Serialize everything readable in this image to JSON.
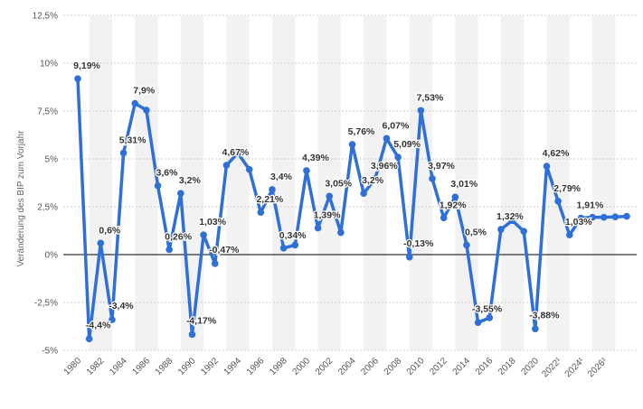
{
  "chart_data": {
    "type": "line",
    "title": "",
    "xlabel": "",
    "ylabel": "Veränderung des BIP zum Vorjahr",
    "ylim": [
      -5,
      12.5
    ],
    "yticks": [
      {
        "value": 12.5,
        "label": "12,5%"
      },
      {
        "value": 10,
        "label": "10%"
      },
      {
        "value": 7.5,
        "label": "7,5%"
      },
      {
        "value": 5,
        "label": "5%"
      },
      {
        "value": 2.5,
        "label": "2,5%"
      },
      {
        "value": 0,
        "label": "0%"
      },
      {
        "value": -2.5,
        "label": "-2,5%"
      },
      {
        "value": -5,
        "label": "-5%"
      }
    ],
    "xticks": [
      "1980",
      "1982",
      "1984",
      "1986",
      "1988",
      "1990",
      "1992",
      "1994",
      "1996",
      "1998",
      "2000",
      "2002",
      "2004",
      "2006",
      "2008",
      "2010",
      "2012",
      "2014",
      "2016",
      "2018",
      "2020",
      "2022¹",
      "2024¹",
      "2026¹"
    ],
    "grid": "horizontal dashed, alternating column bands",
    "line_color": "#2e6fd8",
    "series": [
      {
        "x": [
          1980,
          1981,
          1982,
          1983,
          1984,
          1985,
          1986,
          1987,
          1988,
          1989,
          1990,
          1991,
          1992,
          1993,
          1994,
          1995,
          1996,
          1997,
          1998,
          1999,
          2000,
          2001,
          2002,
          2003,
          2004,
          2005,
          2006,
          2007,
          2008,
          2009,
          2010,
          2011,
          2012,
          2013,
          2014,
          2015,
          2016,
          2017,
          2018,
          2019,
          2020,
          2021,
          2022,
          2023,
          2024,
          2025,
          2026,
          2027,
          2028
        ],
        "values": [
          9.19,
          -4.4,
          0.6,
          -3.4,
          5.31,
          7.9,
          7.55,
          3.6,
          0.26,
          3.2,
          -4.17,
          1.03,
          -0.47,
          4.67,
          5.3,
          4.45,
          2.21,
          3.4,
          0.34,
          0.5,
          4.39,
          1.39,
          3.05,
          1.15,
          5.76,
          3.2,
          3.96,
          6.07,
          5.09,
          -0.13,
          7.53,
          3.97,
          1.92,
          3.01,
          0.5,
          -3.55,
          -3.3,
          1.32,
          1.78,
          1.22,
          -3.88,
          4.62,
          2.79,
          1.03,
          1.91,
          1.95,
          1.95,
          1.97,
          2.0
        ]
      }
    ],
    "data_labels": [
      {
        "x": 1980,
        "y": 9.19,
        "text": "9,19%"
      },
      {
        "x": 1981,
        "y": -4.4,
        "text": "-4,4%"
      },
      {
        "x": 1982,
        "y": 0.6,
        "text": "0,6%"
      },
      {
        "x": 1983,
        "y": -3.4,
        "text": "-3,4%"
      },
      {
        "x": 1984,
        "y": 5.31,
        "text": "5,31%"
      },
      {
        "x": 1985,
        "y": 7.9,
        "text": "7,9%"
      },
      {
        "x": 1987,
        "y": 3.6,
        "text": "3,6%"
      },
      {
        "x": 1988,
        "y": 0.26,
        "text": "0,26%"
      },
      {
        "x": 1989,
        "y": 3.2,
        "text": "3,2%"
      },
      {
        "x": 1990,
        "y": -4.17,
        "text": "-4,17%"
      },
      {
        "x": 1991,
        "y": 1.03,
        "text": "1,03%"
      },
      {
        "x": 1992,
        "y": -0.47,
        "text": "-0,47%"
      },
      {
        "x": 1993,
        "y": 4.67,
        "text": "4,67%"
      },
      {
        "x": 1996,
        "y": 2.21,
        "text": "2,21%"
      },
      {
        "x": 1997,
        "y": 3.4,
        "text": "3,4%"
      },
      {
        "x": 1998,
        "y": 0.34,
        "text": "0,34%"
      },
      {
        "x": 2000,
        "y": 4.39,
        "text": "4,39%"
      },
      {
        "x": 2001,
        "y": 1.39,
        "text": "1,39%"
      },
      {
        "x": 2002,
        "y": 3.05,
        "text": "3,05%"
      },
      {
        "x": 2004,
        "y": 5.76,
        "text": "5,76%"
      },
      {
        "x": 2005,
        "y": 3.2,
        "text": "3,2%"
      },
      {
        "x": 2006,
        "y": 3.96,
        "text": "3,96%"
      },
      {
        "x": 2007,
        "y": 6.07,
        "text": "6,07%"
      },
      {
        "x": 2008,
        "y": 5.09,
        "text": "5,09%"
      },
      {
        "x": 2009,
        "y": -0.13,
        "text": "-0,13%"
      },
      {
        "x": 2010,
        "y": 7.53,
        "text": "7,53%"
      },
      {
        "x": 2011,
        "y": 3.97,
        "text": "3,97%"
      },
      {
        "x": 2012,
        "y": 1.92,
        "text": "1,92%"
      },
      {
        "x": 2013,
        "y": 3.01,
        "text": "3,01%"
      },
      {
        "x": 2014,
        "y": 0.5,
        "text": "0,5%"
      },
      {
        "x": 2015,
        "y": -3.55,
        "text": "-3,55%"
      },
      {
        "x": 2017,
        "y": 1.32,
        "text": "1,32%"
      },
      {
        "x": 2020,
        "y": -3.88,
        "text": "-3,88%"
      },
      {
        "x": 2021,
        "y": 4.62,
        "text": "4,62%"
      },
      {
        "x": 2022,
        "y": 2.79,
        "text": "2,79%"
      },
      {
        "x": 2023,
        "y": 1.03,
        "text": "1,03%"
      },
      {
        "x": 2024,
        "y": 1.91,
        "text": "1,91%"
      }
    ]
  }
}
